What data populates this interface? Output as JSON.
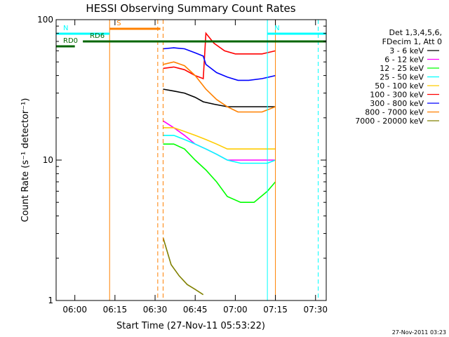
{
  "chart_data": {
    "type": "line",
    "title": "HESSI Observing Summary Count Rates",
    "xlabel": "Start Time (27-Nov-11 05:53:22)",
    "ylabel": "Count Rate (s⁻¹ detector⁻¹)",
    "y_scale": "log",
    "ylim": [
      1,
      100
    ],
    "xlim": [
      "05:53",
      "07:34"
    ],
    "x_ticks": [
      "06:00",
      "06:15",
      "06:30",
      "06:45",
      "07:00",
      "07:15",
      "07:30"
    ],
    "y_ticks": [
      "1",
      "10",
      "100"
    ],
    "legend_header": [
      "Det 1,3,4,5,6,",
      "FDecim 1, Att 0"
    ],
    "legend_position": "right",
    "series": [
      {
        "name": "3 - 6 keV",
        "color": "#000000",
        "x": [
          "06:33",
          "06:37",
          "06:41",
          "06:45",
          "06:48",
          "06:52",
          "06:57",
          "07:02",
          "07:07",
          "07:12",
          "07:15"
        ],
        "y": [
          32,
          31,
          30,
          28,
          26,
          25,
          24,
          24,
          24,
          24,
          24
        ]
      },
      {
        "name": "6 - 12 keV",
        "color": "#ff00ff",
        "x": [
          "06:33",
          "06:37",
          "06:41",
          "06:45",
          "06:49",
          "06:53",
          "06:57",
          "07:02",
          "07:07",
          "07:12",
          "07:15"
        ],
        "y": [
          19,
          17,
          15,
          13,
          12,
          11,
          10,
          10,
          10,
          10,
          10
        ]
      },
      {
        "name": "12 - 25 keV",
        "color": "#00ff00",
        "x": [
          "06:33",
          "06:37",
          "06:41",
          "06:45",
          "06:49",
          "06:53",
          "06:57",
          "07:02",
          "07:07",
          "07:12",
          "07:15"
        ],
        "y": [
          13,
          13,
          12,
          10,
          8.5,
          7,
          5.5,
          5,
          5,
          6,
          7
        ]
      },
      {
        "name": "25 - 50 keV",
        "color": "#00ffff",
        "x": [
          "06:33",
          "06:37",
          "06:41",
          "06:45",
          "06:49",
          "06:53",
          "06:57",
          "07:02",
          "07:07",
          "07:12",
          "07:15"
        ],
        "y": [
          15,
          15,
          14,
          13,
          12,
          11,
          10,
          9.5,
          9.5,
          9.5,
          10
        ]
      },
      {
        "name": "50 - 100 keV",
        "color": "#ffcc00",
        "x": [
          "06:33",
          "06:37",
          "06:41",
          "06:45",
          "06:49",
          "06:53",
          "06:57",
          "07:02",
          "07:07",
          "07:12",
          "07:15"
        ],
        "y": [
          17,
          17,
          16,
          15,
          14,
          13,
          12,
          12,
          12,
          12,
          12
        ]
      },
      {
        "name": "100 - 300 keV",
        "color": "#ff0000",
        "x": [
          "06:33",
          "06:37",
          "06:41",
          "06:45",
          "06:48",
          "06:49",
          "06:52",
          "06:56",
          "07:00",
          "07:05",
          "07:10",
          "07:15"
        ],
        "y": [
          45,
          46,
          44,
          40,
          38,
          80,
          68,
          60,
          57,
          57,
          57,
          60
        ]
      },
      {
        "name": "300 - 800 keV",
        "color": "#0000ff",
        "x": [
          "06:33",
          "06:37",
          "06:41",
          "06:45",
          "06:48",
          "06:49",
          "06:53",
          "06:57",
          "07:01",
          "07:05",
          "07:10",
          "07:15"
        ],
        "y": [
          62,
          63,
          62,
          58,
          55,
          48,
          42,
          39,
          37,
          37,
          38,
          40
        ]
      },
      {
        "name": "800 - 7000 keV",
        "color": "#ff8000",
        "x": [
          "06:33",
          "06:37",
          "06:41",
          "06:45",
          "06:49",
          "06:53",
          "06:57",
          "07:01",
          "07:05",
          "07:10",
          "07:15"
        ],
        "y": [
          48,
          50,
          47,
          40,
          32,
          27,
          24,
          22,
          22,
          22,
          24
        ]
      },
      {
        "name": "7000 - 20000 keV",
        "color": "#808000",
        "x": [
          "06:33",
          "06:36",
          "06:39",
          "06:42",
          "06:45",
          "06:48"
        ],
        "y": [
          2.8,
          1.8,
          1.5,
          1.3,
          1.2,
          1.1
        ]
      }
    ],
    "flags": [
      {
        "label": "S",
        "color": "#ff8000",
        "from": "06:13",
        "to": "06:32"
      },
      {
        "label": "N",
        "color": "#00ffff",
        "from": "05:53",
        "to": "06:13"
      },
      {
        "label": "N",
        "color": "#00ffff",
        "from": "07:12",
        "to": "07:34"
      },
      {
        "label": "RD0",
        "color": "#006600",
        "from": "05:53",
        "to": "06:00"
      },
      {
        "label": "RD6",
        "color": "#006600",
        "from": "06:03",
        "to": "07:34"
      }
    ],
    "vertical_markers": [
      {
        "time": "06:13",
        "color": "#ff8000",
        "style": "solid"
      },
      {
        "time": "06:31",
        "color": "#ff8000",
        "style": "dashed"
      },
      {
        "time": "06:33",
        "color": "#ff8000",
        "style": "dashed"
      },
      {
        "time": "07:12",
        "color": "#00ffff",
        "style": "solid"
      },
      {
        "time": "07:15",
        "color": "#ff8000",
        "style": "solid"
      },
      {
        "time": "07:31",
        "color": "#00ffff",
        "style": "dashed"
      }
    ]
  },
  "footer": {
    "timestamp": "27-Nov-2011 03:23"
  }
}
